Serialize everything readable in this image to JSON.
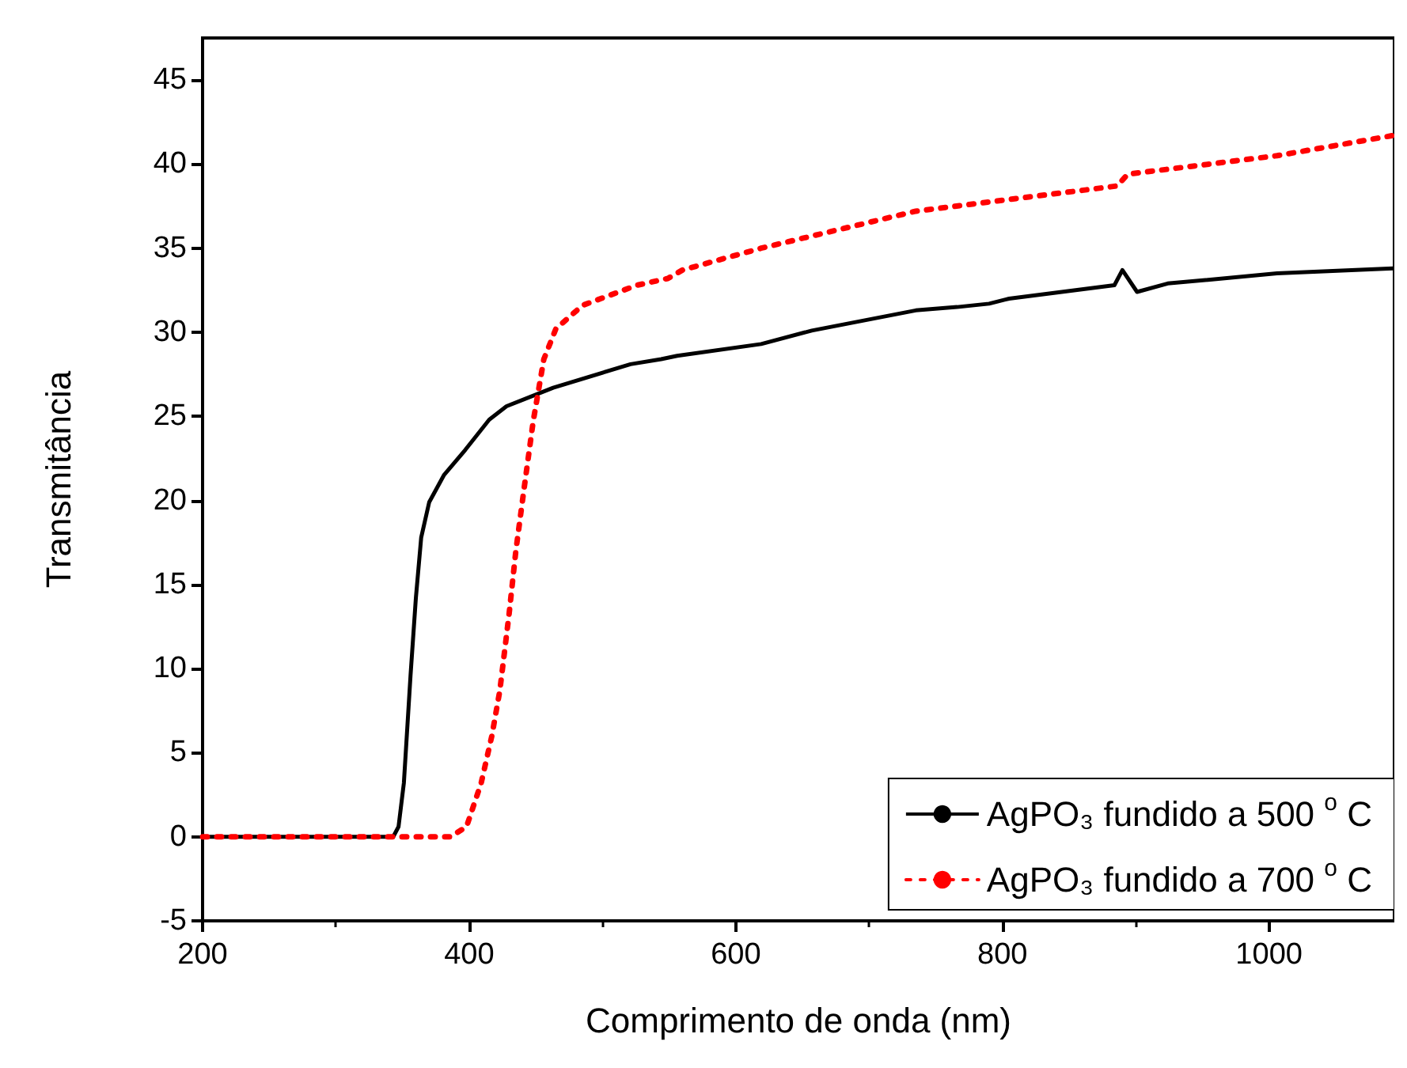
{
  "chart_data": {
    "type": "line",
    "xlabel": "Comprimento de onda (nm)",
    "ylabel": "Transmitância",
    "xlim": [
      200,
      1094
    ],
    "xticks": [
      200,
      400,
      600,
      800,
      1000
    ],
    "ylim": [
      -5,
      47.5
    ],
    "yticks": [
      -5,
      0,
      5,
      10,
      15,
      20,
      25,
      30,
      35,
      40,
      45
    ],
    "legend": "bottom right",
    "grid": false,
    "series": [
      {
        "name": "AgPO₃ fundido a 500 $^{o}$ C",
        "color": "#000000",
        "line_style": "solid",
        "x": [
          200,
          343,
          347,
          351,
          356,
          360,
          364,
          370,
          381,
          397,
          415,
          428,
          463,
          521,
          544,
          556,
          619,
          657,
          735,
          766,
          790,
          805,
          884,
          890,
          901,
          924,
          1006,
          1093
        ],
        "values": [
          0,
          0,
          0.6,
          3.2,
          9.6,
          14.2,
          17.8,
          19.9,
          21.5,
          23,
          24.8,
          25.6,
          26.7,
          28.1,
          28.4,
          28.6,
          29.3,
          30.1,
          31.3,
          31.5,
          31.7,
          32,
          32.8,
          33.7,
          32.4,
          32.9,
          33.5,
          33.8
        ]
      },
      {
        "name": "AgPO₃ fundido a 700 $^{o}$ C",
        "color": "#ff0000",
        "line_style": "dotted",
        "x": [
          200,
          386,
          398,
          409,
          417,
          423,
          430,
          435,
          441,
          448,
          456,
          465,
          485,
          526,
          549,
          560,
          619,
          735,
          886,
          894,
          1006,
          1093
        ],
        "values": [
          0,
          0,
          0.6,
          3.2,
          6,
          8.7,
          13.3,
          17,
          20.6,
          24.7,
          28.4,
          30.2,
          31.6,
          32.8,
          33.2,
          33.7,
          35,
          37.2,
          38.7,
          39.4,
          40.5,
          41.7
        ]
      }
    ]
  }
}
